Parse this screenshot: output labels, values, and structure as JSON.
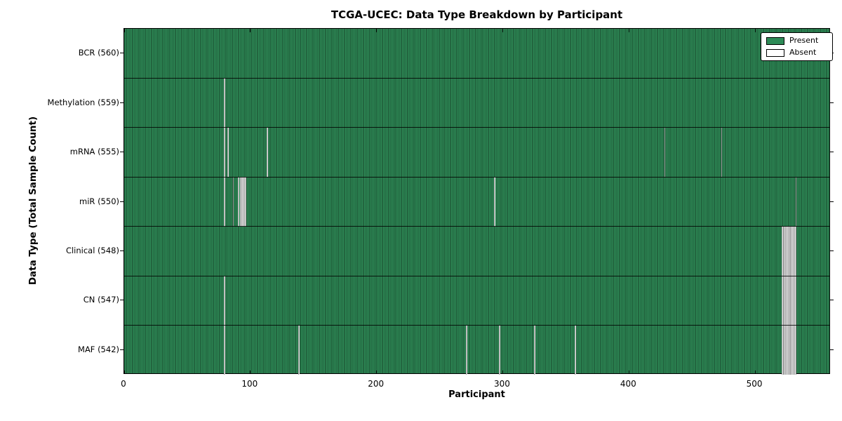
{
  "figure": {
    "title": "TCGA-UCEC: Data Type Breakdown by Participant",
    "xlabel": "Participant",
    "ylabel": "Data Type (Total Sample Count)"
  },
  "legend": {
    "items": [
      {
        "label": "Present",
        "color": "#2E8B57"
      },
      {
        "label": "Absent",
        "color": "#FFFFFF"
      }
    ]
  },
  "chart_data": {
    "type": "heatmap",
    "title": "TCGA-UCEC: Data Type Breakdown by Participant",
    "xlabel": "Participant",
    "ylabel": "Data Type (Total Sample Count)",
    "n_participants": 560,
    "xlim": [
      0,
      560
    ],
    "x_ticks": [
      0,
      100,
      200,
      300,
      400,
      500
    ],
    "legend_entries": [
      "Present",
      "Absent"
    ],
    "legend_position": "upper right",
    "grid": false,
    "colors": {
      "present": "#2E8B57",
      "absent": "#FFFFFF",
      "cell_edge": "#000000"
    },
    "rows": [
      {
        "slug": "bcr",
        "label": "BCR (560)",
        "data_type": "BCR",
        "total": 560,
        "absent_participants": []
      },
      {
        "slug": "methylation",
        "label": "Methylation (559)",
        "data_type": "Methylation",
        "total": 559,
        "absent_participants": [
          79
        ]
      },
      {
        "slug": "mrna",
        "label": "mRNA (555)",
        "data_type": "mRNA",
        "total": 555,
        "absent_participants": [
          79,
          82,
          113,
          428,
          473
        ]
      },
      {
        "slug": "mir",
        "label": "miR (550)",
        "data_type": "miR",
        "total": 550,
        "absent_participants": [
          79,
          86,
          90,
          92,
          93,
          94,
          95,
          96,
          293,
          532
        ]
      },
      {
        "slug": "clinical",
        "label": "Clinical (548)",
        "data_type": "Clinical",
        "total": 548,
        "absent_participants": [
          521,
          522,
          523,
          524,
          525,
          526,
          527,
          528,
          529,
          530,
          531,
          532
        ]
      },
      {
        "slug": "cn",
        "label": "CN (547)",
        "data_type": "CN",
        "total": 547,
        "absent_participants": [
          79,
          521,
          522,
          523,
          524,
          525,
          526,
          527,
          528,
          529,
          530,
          531,
          532
        ]
      },
      {
        "slug": "maf",
        "label": "MAF (542)",
        "data_type": "MAF",
        "total": 542,
        "absent_participants": [
          79,
          138,
          271,
          297,
          325,
          357,
          521,
          522,
          523,
          524,
          525,
          526,
          527,
          528,
          529,
          530,
          531,
          532
        ]
      }
    ]
  }
}
